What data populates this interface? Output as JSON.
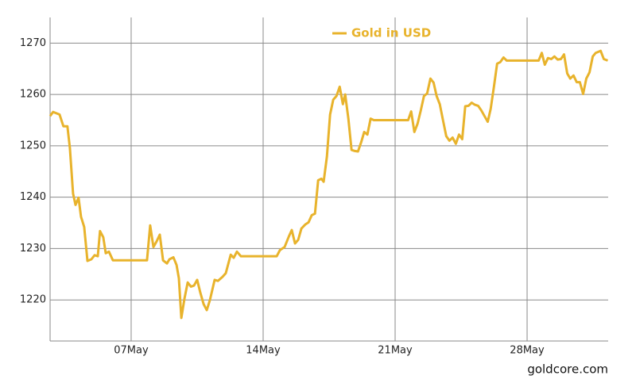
{
  "chart_data": {
    "type": "line",
    "watermark": "goldcore.com",
    "x": [
      2.7,
      2.86,
      3.2,
      3.41,
      3.62,
      3.75,
      3.92,
      4.05,
      4.21,
      4.34,
      4.51,
      4.68,
      4.89,
      5.06,
      5.23,
      5.35,
      5.52,
      5.65,
      5.82,
      6.03,
      7.84,
      8.01,
      8.18,
      8.35,
      8.52,
      8.69,
      8.9,
      9.03,
      9.24,
      9.41,
      9.53,
      9.66,
      9.83,
      10.0,
      10.17,
      10.33,
      10.5,
      10.67,
      10.84,
      11.01,
      11.18,
      11.43,
      11.6,
      11.85,
      12.02,
      12.28,
      12.44,
      12.61,
      12.82,
      14.72,
      14.89,
      15.14,
      15.36,
      15.52,
      15.69,
      15.86,
      16.03,
      16.24,
      16.41,
      16.58,
      16.75,
      16.92,
      17.09,
      17.21,
      17.38,
      17.55,
      17.72,
      17.89,
      18.06,
      18.23,
      18.35,
      18.52,
      18.69,
      18.86,
      19.03,
      19.2,
      19.36,
      19.53,
      19.7,
      19.87,
      21.69,
      21.85,
      22.02,
      22.19,
      22.36,
      22.53,
      22.7,
      22.87,
      23.04,
      23.2,
      23.37,
      23.54,
      23.71,
      23.88,
      24.05,
      24.22,
      24.39,
      24.56,
      24.72,
      24.89,
      25.06,
      25.23,
      25.4,
      25.57,
      25.74,
      25.91,
      26.07,
      26.24,
      26.41,
      26.58,
      26.75,
      26.92,
      28.61,
      28.78,
      28.94,
      29.11,
      29.28,
      29.45,
      29.62,
      29.79,
      29.96,
      30.13,
      30.29,
      30.46,
      30.63,
      30.8,
      30.97,
      31.14,
      31.31,
      31.48,
      31.64,
      31.9,
      32.07,
      32.28
    ],
    "series": [
      {
        "name": "Gold in USD",
        "color": "#e8b32c",
        "values": [
          1255.8,
          1256.6,
          1256.1,
          1253.8,
          1253.8,
          1249.6,
          1240.7,
          1238.5,
          1239.9,
          1236.2,
          1234.2,
          1227.6,
          1227.9,
          1228.7,
          1228.5,
          1233.4,
          1232.2,
          1229.1,
          1229.4,
          1227.7,
          1227.7,
          1234.5,
          1230.3,
          1231.4,
          1232.7,
          1227.7,
          1227.1,
          1227.9,
          1228.3,
          1226.8,
          1224.2,
          1216.5,
          1220.3,
          1223.4,
          1222.6,
          1222.8,
          1223.9,
          1221.4,
          1219.2,
          1218.0,
          1220.0,
          1223.9,
          1223.7,
          1224.5,
          1225.2,
          1228.8,
          1228.2,
          1229.4,
          1228.5,
          1228.5,
          1229.7,
          1230.3,
          1232.3,
          1233.6,
          1231.0,
          1231.7,
          1233.9,
          1234.7,
          1235.1,
          1236.5,
          1236.8,
          1243.3,
          1243.6,
          1243.0,
          1247.9,
          1256.1,
          1259.0,
          1259.7,
          1261.5,
          1258.1,
          1260.0,
          1255.3,
          1249.2,
          1249.0,
          1248.9,
          1250.7,
          1252.7,
          1252.2,
          1255.3,
          1255.0,
          1255.0,
          1256.7,
          1252.7,
          1254.3,
          1256.9,
          1259.7,
          1260.2,
          1263.1,
          1262.3,
          1259.7,
          1258.1,
          1255.0,
          1251.9,
          1251.0,
          1251.6,
          1250.4,
          1252.2,
          1251.3,
          1257.7,
          1257.8,
          1258.4,
          1258.0,
          1257.8,
          1256.9,
          1255.8,
          1254.7,
          1257.2,
          1261.5,
          1266.0,
          1266.3,
          1267.2,
          1266.6,
          1266.6,
          1268.1,
          1265.8,
          1267.1,
          1266.9,
          1267.4,
          1266.8,
          1266.9,
          1267.8,
          1264.1,
          1263.1,
          1263.7,
          1262.4,
          1262.4,
          1260.1,
          1263.1,
          1264.3,
          1267.4,
          1268.1,
          1268.5,
          1266.9,
          1266.6
        ]
      }
    ],
    "xlim": [
      2.7,
      32.3
    ],
    "xticks": [
      {
        "value": 7,
        "label": "07May"
      },
      {
        "value": 14,
        "label": "14May"
      },
      {
        "value": 21,
        "label": "21May"
      },
      {
        "value": 28,
        "label": "28May"
      }
    ],
    "ylim": [
      1212,
      1275
    ],
    "yticks": [
      1220,
      1230,
      1240,
      1250,
      1260,
      1270
    ],
    "grid": true,
    "legend": "top"
  }
}
